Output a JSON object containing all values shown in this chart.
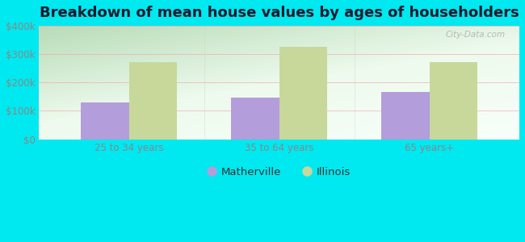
{
  "title": "Breakdown of mean house values by ages of householders",
  "categories": [
    "25 to 34 years",
    "35 to 64 years",
    "65 years+"
  ],
  "matherville_values": [
    130000,
    148000,
    168000
  ],
  "illinois_values": [
    272000,
    325000,
    272000
  ],
  "bar_color_matherville": "#b39ddb",
  "bar_color_illinois": "#c8d89a",
  "ylim": [
    0,
    400000
  ],
  "yticks": [
    0,
    100000,
    200000,
    300000,
    400000
  ],
  "ytick_labels": [
    "$0",
    "$100k",
    "$200k",
    "$300k",
    "$400k"
  ],
  "background_color": "#00e8f0",
  "grid_color": "#f4a0aa",
  "legend_labels": [
    "Matherville",
    "Illinois"
  ],
  "title_fontsize": 13,
  "tick_fontsize": 8.5,
  "legend_fontsize": 9.5,
  "bar_width": 0.32,
  "watermark": "City-Data.com",
  "tick_color": "#888888",
  "title_color": "#1a1a2e"
}
